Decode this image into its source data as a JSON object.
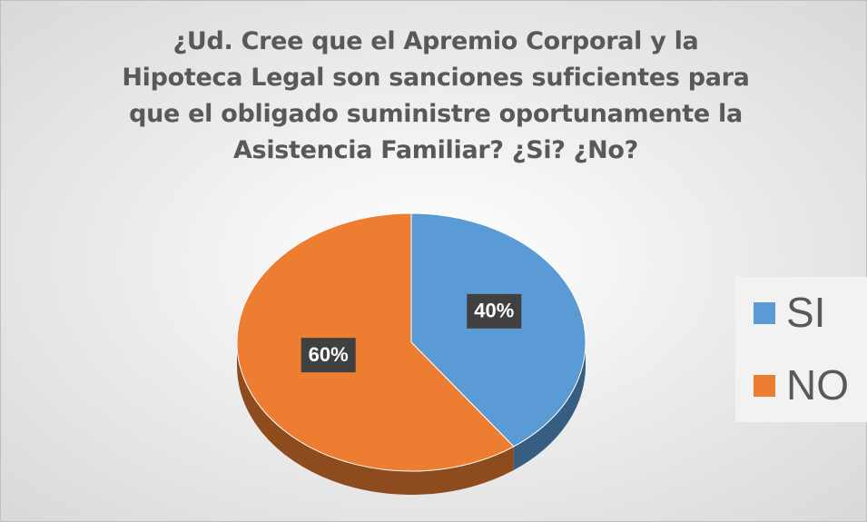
{
  "chart_data": {
    "type": "pie",
    "title": "¿Ud. Cree que el Apremio Corporal y la Hipoteca Legal son sanciones suficientes para que el obligado suministre oportunamente la Asistencia Familiar? ¿Si? ¿No?",
    "categories": [
      "SI",
      "NO"
    ],
    "values": [
      40,
      60
    ],
    "value_labels": [
      "40%",
      "60%"
    ],
    "colors": [
      "#5b9bd5",
      "#ed7d31"
    ],
    "legend": "right"
  }
}
